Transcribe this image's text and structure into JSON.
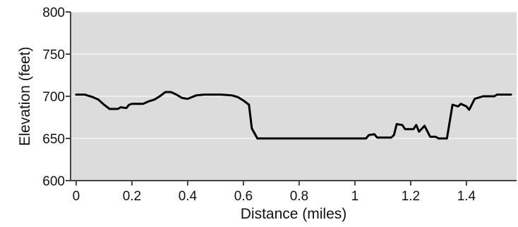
{
  "chart_data": {
    "type": "line",
    "title": "",
    "xlabel": "Distance (miles)",
    "ylabel": "Elevation (feet)",
    "xlim": [
      -0.02,
      1.58
    ],
    "ylim": [
      600,
      800
    ],
    "x_ticks": [
      0,
      0.2,
      0.4,
      0.6,
      0.8,
      1,
      1.2,
      1.4
    ],
    "x_tick_labels": [
      "0",
      "0.2",
      "0.4",
      "0.6",
      "0.8",
      "1",
      "1.2",
      "1.4"
    ],
    "y_ticks": [
      600,
      650,
      700,
      750,
      800
    ],
    "y_tick_labels": [
      "600",
      "650",
      "700",
      "750",
      "800"
    ],
    "grid": "horizontal",
    "legend": "none",
    "colors": {
      "plot_background": "#dcdcdc",
      "line": "#000000",
      "grid": "#f4f4f4",
      "axis": "#444444"
    },
    "series": [
      {
        "values": [
          [
            0,
            702
          ],
          [
            0.03,
            702
          ],
          [
            0.06,
            699
          ],
          [
            0.08,
            696
          ],
          [
            0.1,
            690
          ],
          [
            0.12,
            685
          ],
          [
            0.15,
            685
          ],
          [
            0.16,
            687
          ],
          [
            0.18,
            686
          ],
          [
            0.19,
            690
          ],
          [
            0.2,
            691
          ],
          [
            0.24,
            691
          ],
          [
            0.26,
            694
          ],
          [
            0.28,
            696
          ],
          [
            0.3,
            700
          ],
          [
            0.32,
            705
          ],
          [
            0.34,
            705
          ],
          [
            0.36,
            702
          ],
          [
            0.38,
            698
          ],
          [
            0.4,
            697
          ],
          [
            0.43,
            701
          ],
          [
            0.46,
            702
          ],
          [
            0.52,
            702
          ],
          [
            0.56,
            701
          ],
          [
            0.58,
            699
          ],
          [
            0.6,
            695
          ],
          [
            0.62,
            690
          ],
          [
            0.63,
            662
          ],
          [
            0.65,
            650
          ],
          [
            1.04,
            650
          ],
          [
            1.05,
            654
          ],
          [
            1.07,
            655
          ],
          [
            1.08,
            651
          ],
          [
            1.13,
            651
          ],
          [
            1.14,
            654
          ],
          [
            1.15,
            667
          ],
          [
            1.17,
            666
          ],
          [
            1.18,
            661
          ],
          [
            1.21,
            661
          ],
          [
            1.22,
            666
          ],
          [
            1.23,
            658
          ],
          [
            1.25,
            665
          ],
          [
            1.27,
            652
          ],
          [
            1.29,
            652
          ],
          [
            1.3,
            650
          ],
          [
            1.33,
            650
          ],
          [
            1.35,
            690
          ],
          [
            1.37,
            688
          ],
          [
            1.38,
            691
          ],
          [
            1.4,
            688
          ],
          [
            1.41,
            684
          ],
          [
            1.43,
            697
          ],
          [
            1.46,
            700
          ],
          [
            1.5,
            700
          ],
          [
            1.51,
            702
          ],
          [
            1.56,
            702
          ]
        ]
      }
    ]
  }
}
